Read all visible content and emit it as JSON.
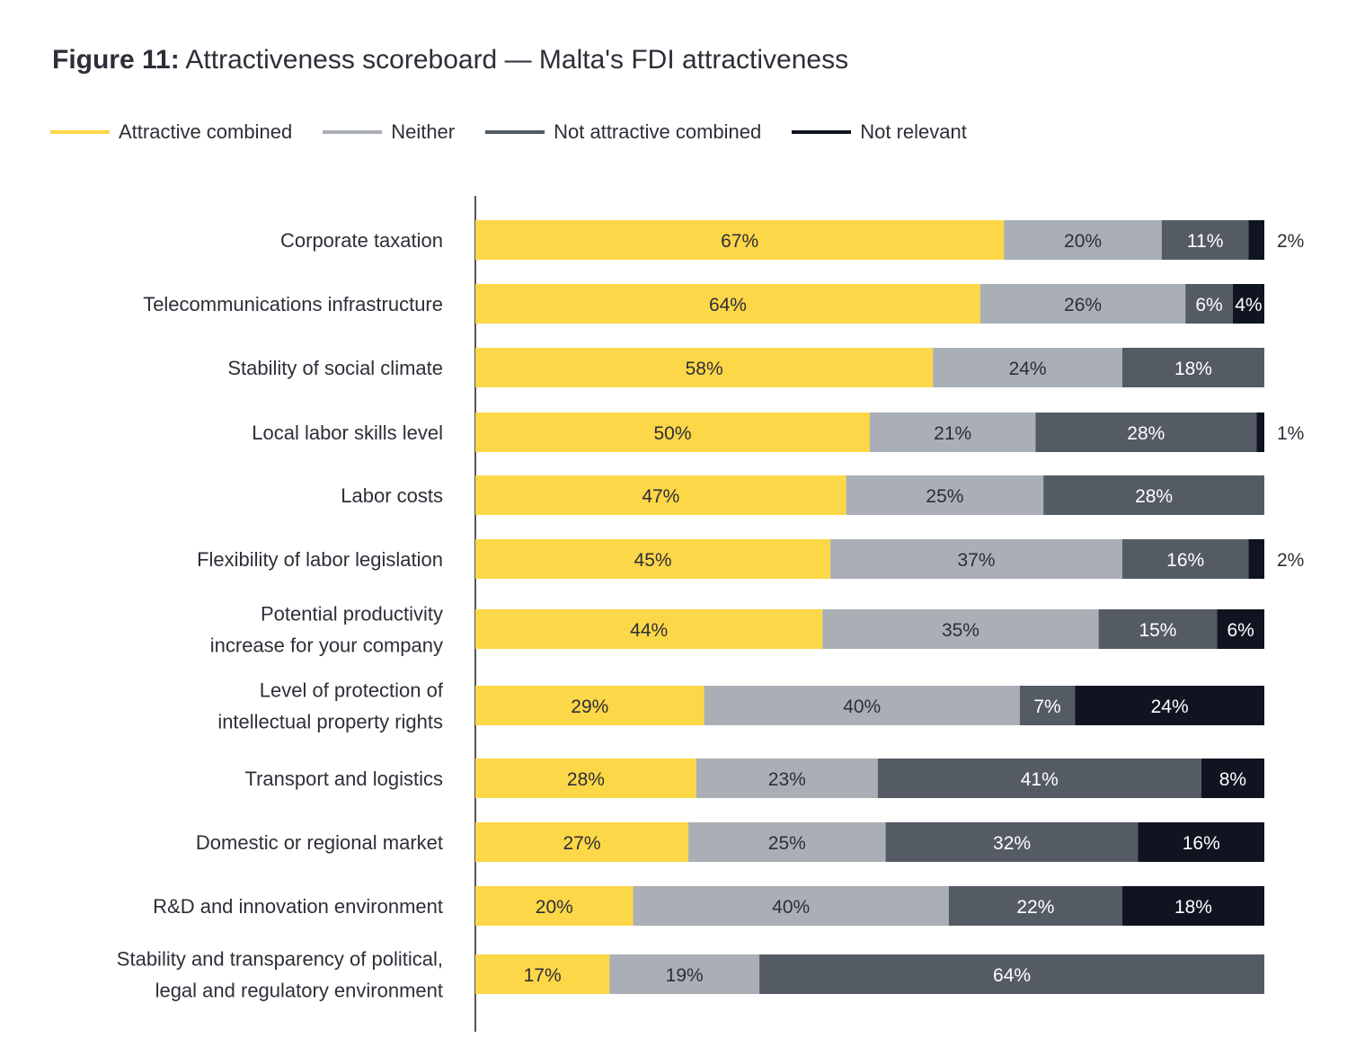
{
  "title_prefix": "Figure 11:",
  "title_rest": "Attractiveness scoreboard — Malta's FDI attractiveness",
  "colors": {
    "attractive": "#FCD748",
    "neither": "#A9AFB4",
    "not_attractive": "#545B65",
    "not_relevant": "#0F1420",
    "text_dark": "#2e2e38",
    "axis": "#555555"
  },
  "chart_data": {
    "type": "bar",
    "orientation": "horizontal",
    "stacked": true,
    "legend_position": "top-left",
    "grid": false,
    "xlim": [
      0,
      100
    ],
    "categories": [
      [
        "Corporate taxation"
      ],
      [
        "Telecommunications infrastructure"
      ],
      [
        "Stability of social climate"
      ],
      [
        "Local labor skills level"
      ],
      [
        "Labor costs"
      ],
      [
        "Flexibility of labor legislation"
      ],
      [
        "Potential productivity",
        "increase for your company"
      ],
      [
        "Level of protection of",
        "intellectual property rights"
      ],
      [
        "Transport and logistics"
      ],
      [
        "Domestic or regional market"
      ],
      [
        "R&D and innovation environment"
      ],
      [
        "Stability and transparency of political,",
        "legal and regulatory environment"
      ]
    ],
    "series": [
      {
        "name": "Attractive combined",
        "color_key": "attractive",
        "values": [
          67,
          64,
          58,
          50,
          47,
          45,
          44,
          29,
          28,
          27,
          20,
          17
        ]
      },
      {
        "name": "Neither",
        "color_key": "neither",
        "values": [
          20,
          26,
          24,
          21,
          25,
          37,
          35,
          40,
          23,
          25,
          40,
          19
        ]
      },
      {
        "name": "Not attractive combined",
        "color_key": "not_attractive",
        "values": [
          11,
          6,
          18,
          28,
          28,
          16,
          15,
          7,
          41,
          32,
          22,
          64
        ]
      },
      {
        "name": "Not relevant",
        "color_key": "not_relevant",
        "values": [
          2,
          4,
          0,
          1,
          0,
          2,
          6,
          24,
          8,
          16,
          18,
          0
        ]
      }
    ]
  }
}
